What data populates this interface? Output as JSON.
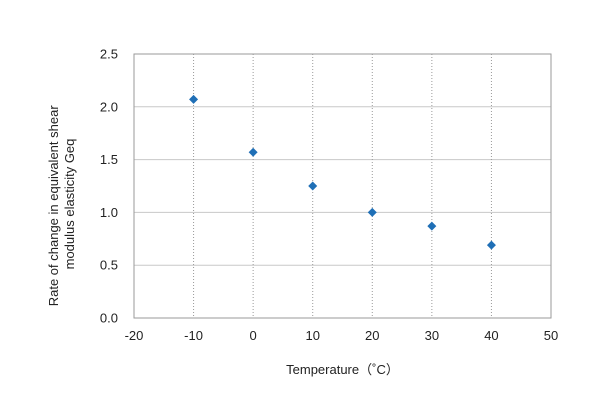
{
  "chart_data": {
    "type": "scatter",
    "xlabel": "Temperature（˚C）",
    "ylabel_lines": [
      "Rate of change in equivalent shear",
      "modulus elasticity  Geq"
    ],
    "xlim": [
      -20,
      50
    ],
    "ylim": [
      0,
      2.5
    ],
    "x_ticks": [
      -20,
      -10,
      0,
      10,
      20,
      30,
      40,
      50
    ],
    "y_ticks": [
      0.0,
      0.5,
      1.0,
      1.5,
      2.0,
      2.5
    ],
    "x_tick_labels": [
      "-20",
      "-10",
      "0",
      "10",
      "20",
      "30",
      "40",
      "50"
    ],
    "y_tick_labels": [
      "0.0",
      "0.5",
      "1.0",
      "1.5",
      "2.0",
      "2.5"
    ],
    "grid": {
      "horizontal": "solid",
      "vertical": "dotted"
    },
    "series": [
      {
        "x": [
          -10,
          0,
          10,
          20,
          30,
          40
        ],
        "y": [
          2.07,
          1.57,
          1.25,
          1.0,
          0.87,
          0.69
        ],
        "marker": "diamond",
        "color": "#1f6fb6"
      }
    ]
  }
}
